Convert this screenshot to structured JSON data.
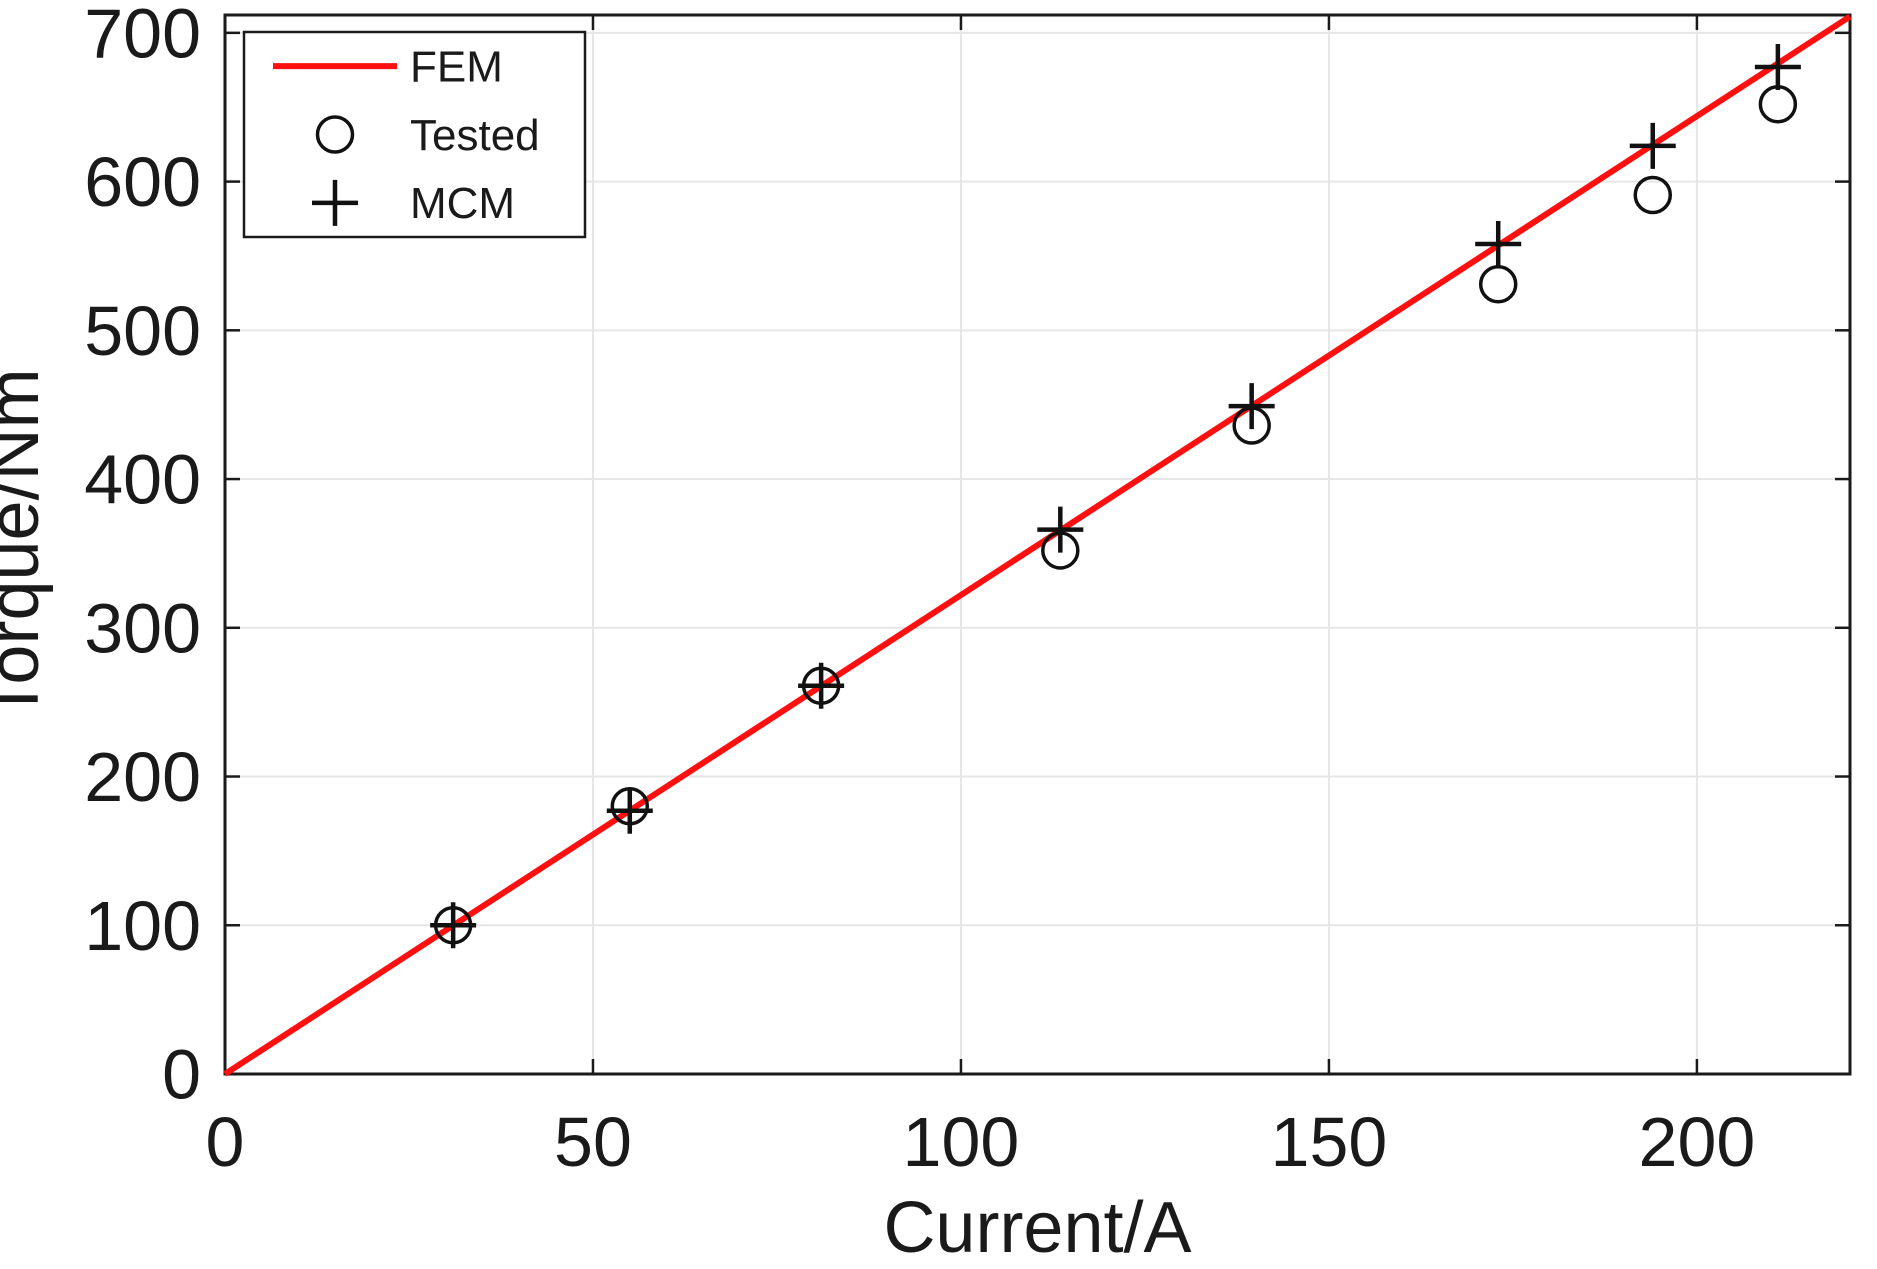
{
  "figure": {
    "background_color": "#ffffff",
    "axis_color": "#1a1a1a",
    "grid_color": "#e6e6e6",
    "accent_color": "#ff0f0f"
  },
  "chart_data": {
    "type": "scatter",
    "title": "",
    "xlabel": "Current/A",
    "ylabel": "Torque/Nm",
    "xlim": [
      0,
      220.8
    ],
    "ylim": [
      0,
      712
    ],
    "xticks": [
      0,
      50,
      100,
      150,
      200
    ],
    "yticks": [
      0,
      100,
      200,
      300,
      400,
      500,
      600,
      700
    ],
    "grid": true,
    "legend_position": "top-left",
    "series": [
      {
        "name": "FEM",
        "type": "line",
        "color": "#ff0f0f",
        "x": [
          0,
          220.8
        ],
        "y": [
          0,
          711
        ]
      },
      {
        "name": "Tested",
        "type": "scatter",
        "marker": "circle",
        "color": "#111111",
        "x": [
          31,
          55,
          81,
          113.5,
          139.5,
          173,
          194,
          211
        ],
        "y": [
          100,
          180,
          261,
          352,
          436,
          531,
          591,
          652
        ]
      },
      {
        "name": "MCM",
        "type": "scatter",
        "marker": "plus",
        "color": "#111111",
        "x": [
          31,
          55,
          81,
          113.5,
          139.5,
          173,
          194,
          211
        ],
        "y": [
          100,
          177,
          261,
          366,
          449,
          558,
          624,
          677
        ]
      }
    ]
  }
}
